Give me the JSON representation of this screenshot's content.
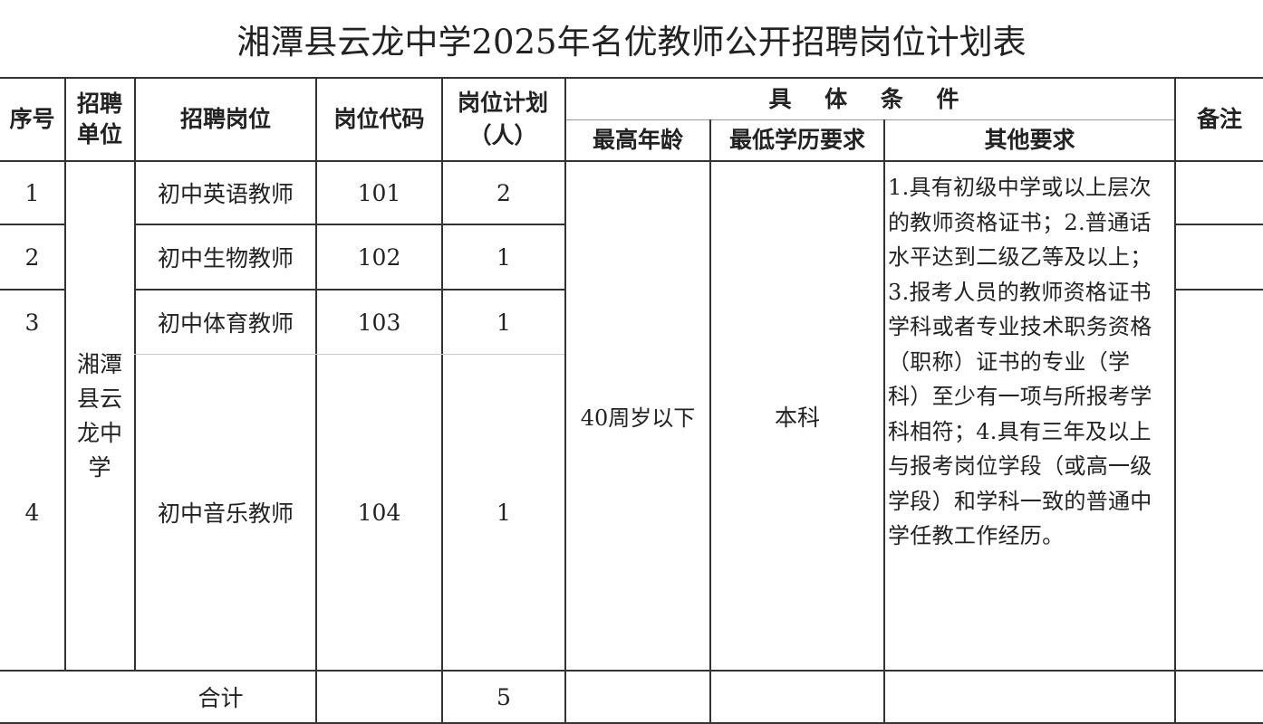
{
  "title": "湘潭县云龙中学2025年名优教师公开招聘岗位计划表",
  "headers": {
    "seq": "序号",
    "unit": "招聘单位",
    "position": "招聘岗位",
    "code": "岗位代码",
    "plan": "岗位计划（人）",
    "conditions": "具 体 条 件",
    "max_age": "最高年龄",
    "min_edu": "最低学历要求",
    "other": "其他要求",
    "remarks": "备注"
  },
  "unit": "湘潭县云龙中学",
  "rows": [
    {
      "seq": "1",
      "position": "初中英语教师",
      "code": "101",
      "plan": "2"
    },
    {
      "seq": "2",
      "position": "初中生物教师",
      "code": "102",
      "plan": "1"
    },
    {
      "seq": "3",
      "position": "初中体育教师",
      "code": "103",
      "plan": "1"
    },
    {
      "seq": "4",
      "position": "初中音乐教师",
      "code": "104",
      "plan": "1"
    }
  ],
  "max_age": "40周岁以下",
  "min_edu": "本科",
  "other_requirements": "1.具有初级中学或以上层次的教师资格证书；2.普通话水平达到二级乙等及以上；3.报考人员的教师资格证书学科或者专业技术职务资格（职称）证书的专业（学科）至少有一项与所报考学科相符；4.具有三年及以上与报考岗位学段（或高一级学段）和学科一致的普通中学任教工作经历。",
  "total": {
    "label": "合计",
    "plan": "5"
  }
}
